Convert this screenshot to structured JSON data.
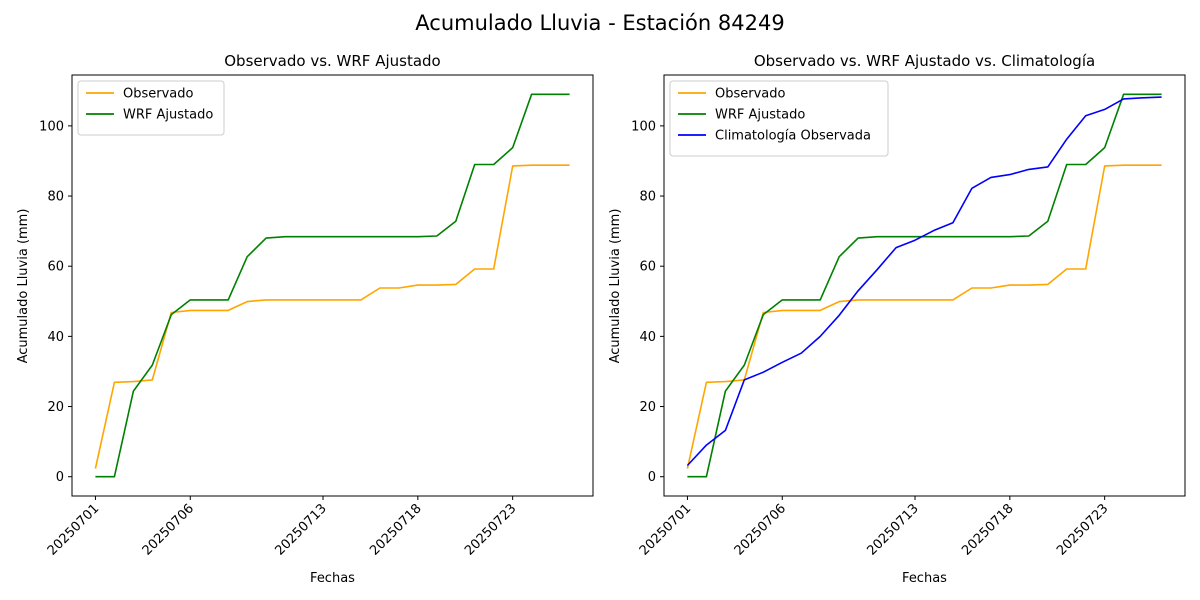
{
  "figure": {
    "suptitle": "Acumulado Lluvia - Estación 84249"
  },
  "colors": {
    "observado": "#FFA500",
    "wrf": "#008000",
    "climatologia": "#0000FF"
  },
  "chart_data": [
    {
      "type": "line",
      "title": "Observado vs. WRF Ajustado",
      "xlabel": "Fechas",
      "ylabel": "Acumulado Lluvia (mm)",
      "x": [
        "20250701",
        "20250702",
        "20250703",
        "20250704",
        "20250705",
        "20250706",
        "20250707",
        "20250708",
        "20250709",
        "20250710",
        "20250711",
        "20250712",
        "20250713",
        "20250714",
        "20250715",
        "20250716",
        "20250717",
        "20250718",
        "20250719",
        "20250720",
        "20250721",
        "20250722",
        "20250723",
        "20250724",
        "20250725",
        "20250726"
      ],
      "xticks": [
        "20250701",
        "20250706",
        "20250713",
        "20250718",
        "20250723"
      ],
      "yticks": [
        0,
        20,
        40,
        60,
        80,
        100
      ],
      "ylim": [
        -5.5,
        114.5
      ],
      "legend_position": "top-left",
      "series": [
        {
          "name": "Observado",
          "color": "#FFA500",
          "values": [
            2.3,
            26.9,
            27.1,
            27.6,
            46.8,
            47.4,
            47.4,
            47.4,
            49.9,
            50.4,
            50.4,
            50.4,
            50.4,
            50.4,
            50.4,
            53.8,
            53.8,
            54.6,
            54.6,
            54.8,
            59.2,
            59.2,
            88.6,
            88.8,
            88.8,
            88.8
          ]
        },
        {
          "name": "WRF Ajustado",
          "color": "#008000",
          "values": [
            0,
            0,
            24.4,
            31.8,
            46.2,
            50.4,
            50.4,
            50.4,
            62.7,
            68.0,
            68.4,
            68.4,
            68.4,
            68.4,
            68.4,
            68.4,
            68.4,
            68.4,
            68.6,
            72.8,
            89.0,
            89.0,
            93.8,
            109.0,
            109.0,
            109.0
          ]
        }
      ]
    },
    {
      "type": "line",
      "title": "Observado vs. WRF Ajustado vs. Climatología",
      "xlabel": "Fechas",
      "ylabel": "Acumulado Lluvia (mm)",
      "x": [
        "20250701",
        "20250702",
        "20250703",
        "20250704",
        "20250705",
        "20250706",
        "20250707",
        "20250708",
        "20250709",
        "20250710",
        "20250711",
        "20250712",
        "20250713",
        "20250714",
        "20250715",
        "20250716",
        "20250717",
        "20250718",
        "20250719",
        "20250720",
        "20250721",
        "20250722",
        "20250723",
        "20250724",
        "20250725",
        "20250726"
      ],
      "xticks": [
        "20250701",
        "20250706",
        "20250713",
        "20250718",
        "20250723"
      ],
      "yticks": [
        0,
        20,
        40,
        60,
        80,
        100
      ],
      "ylim": [
        -5.5,
        114.5
      ],
      "legend_position": "top-left",
      "series": [
        {
          "name": "Observado",
          "color": "#FFA500",
          "values": [
            2.3,
            26.9,
            27.1,
            27.6,
            46.8,
            47.4,
            47.4,
            47.4,
            49.9,
            50.4,
            50.4,
            50.4,
            50.4,
            50.4,
            50.4,
            53.8,
            53.8,
            54.6,
            54.6,
            54.8,
            59.2,
            59.2,
            88.6,
            88.8,
            88.8,
            88.8
          ]
        },
        {
          "name": "WRF Ajustado",
          "color": "#008000",
          "values": [
            0,
            0,
            24.4,
            31.8,
            46.2,
            50.4,
            50.4,
            50.4,
            62.7,
            68.0,
            68.4,
            68.4,
            68.4,
            68.4,
            68.4,
            68.4,
            68.4,
            68.4,
            68.6,
            72.8,
            89.0,
            89.0,
            93.8,
            109.0,
            109.0,
            109.0
          ]
        },
        {
          "name": "Climatología Observada",
          "color": "#0000FF",
          "values": [
            3.2,
            9.0,
            13.2,
            27.6,
            29.8,
            32.6,
            35.2,
            40.0,
            46.0,
            53.0,
            59.0,
            65.3,
            67.4,
            70.2,
            72.4,
            82.2,
            85.3,
            86.1,
            87.6,
            88.3,
            96.2,
            102.9,
            104.7,
            107.7,
            108.0,
            108.2
          ]
        }
      ]
    }
  ]
}
